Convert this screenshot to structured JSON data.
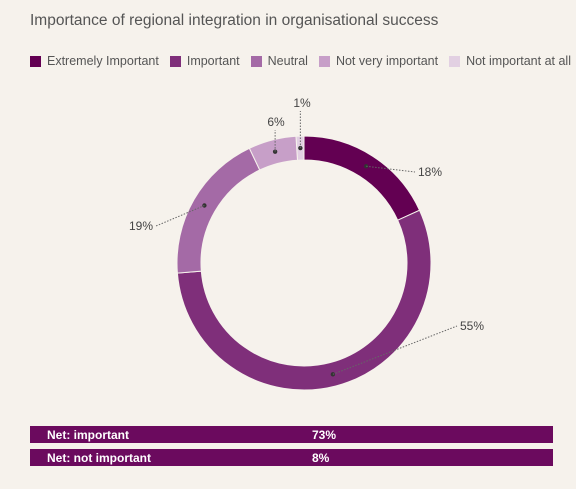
{
  "chart_data": {
    "type": "pie",
    "title": "Importance of regional integration in organisational success",
    "donut": true,
    "legend_position": "top",
    "categories": [
      "Extremely Important",
      "Important",
      "Neutral",
      "Not very important",
      "Not important at all"
    ],
    "values": [
      18,
      55,
      19,
      6,
      1
    ],
    "labels": [
      "18%",
      "55%",
      "19%",
      "6%",
      "1%"
    ],
    "colors": [
      "#630052",
      "#7f2f7a",
      "#a46aa6",
      "#c79fc8",
      "#e2d0e2"
    ]
  },
  "net": [
    {
      "label": "Net: important",
      "value": "73%"
    },
    {
      "label": "Net: not important",
      "value": "8%"
    }
  ],
  "net_color": "#6b0a5e"
}
